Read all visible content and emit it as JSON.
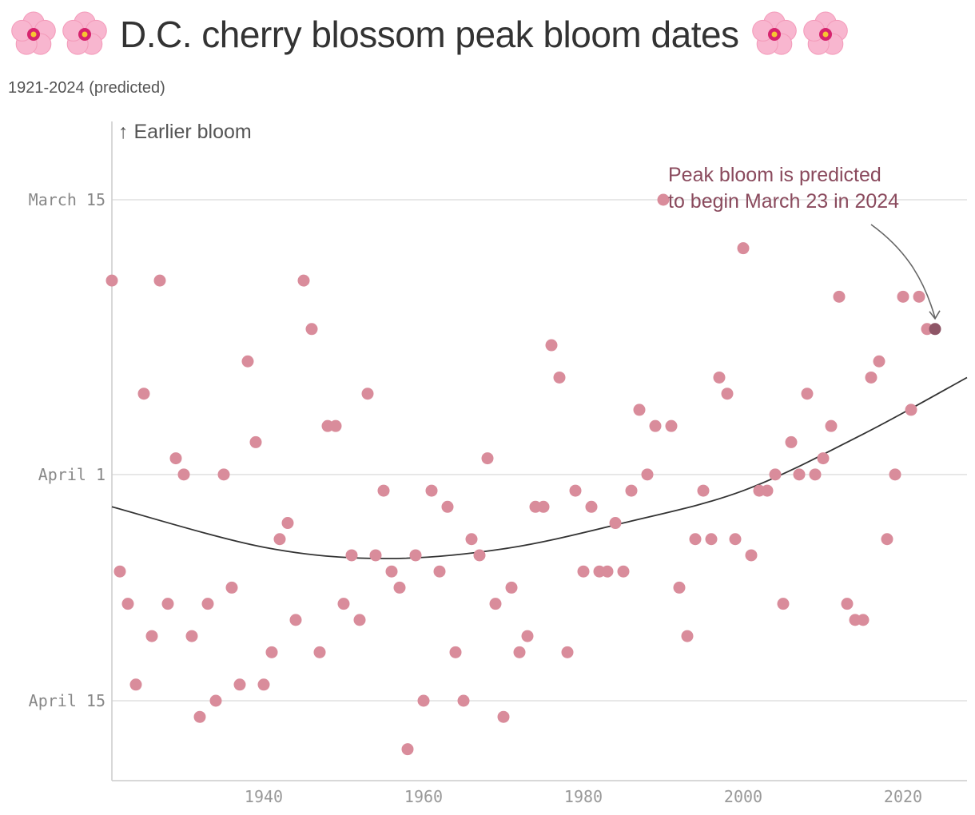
{
  "header": {
    "title": "D.C. cherry blossom peak bloom dates",
    "icon": "cherry-blossom-icon",
    "subtitle": "1921-2024 (predicted)"
  },
  "chart_data": {
    "type": "scatter",
    "title": "D.C. cherry blossom peak bloom dates",
    "subtitle": "1921-2024 (predicted)",
    "xlabel": "",
    "ylabel": "",
    "y_axis_note": "↑ Earlier bloom",
    "y_inverted": true,
    "xlim": [
      1921,
      2028
    ],
    "ylim": [
      "2024-03-10",
      "2024-04-20"
    ],
    "x_ticks": [
      1940,
      1960,
      1980,
      2000,
      2020
    ],
    "y_ticks": [
      {
        "value": "2024-03-15",
        "label": "March 15"
      },
      {
        "value": "2024-04-01",
        "label": "April 1"
      },
      {
        "value": "2024-04-15",
        "label": "April 15"
      }
    ],
    "grid": true,
    "colors": {
      "points": "#d98c9b",
      "predicted_point": "#8e5566",
      "trend_line": "#333333",
      "annotation": "#8a4a5d",
      "grid": "#e0e0e0"
    },
    "series": [
      {
        "points": [
          {
            "x": 1921,
            "y": "2024-03-20"
          },
          {
            "x": 1922,
            "y": "2024-04-07"
          },
          {
            "x": 1923,
            "y": "2024-04-09"
          },
          {
            "x": 1924,
            "y": "2024-04-14"
          },
          {
            "x": 1925,
            "y": "2024-03-27"
          },
          {
            "x": 1926,
            "y": "2024-04-11"
          },
          {
            "x": 1927,
            "y": "2024-03-20"
          },
          {
            "x": 1928,
            "y": "2024-04-09"
          },
          {
            "x": 1929,
            "y": "2024-03-31"
          },
          {
            "x": 1930,
            "y": "2024-04-01"
          },
          {
            "x": 1931,
            "y": "2024-04-11"
          },
          {
            "x": 1932,
            "y": "2024-04-16"
          },
          {
            "x": 1933,
            "y": "2024-04-09"
          },
          {
            "x": 1934,
            "y": "2024-04-15"
          },
          {
            "x": 1935,
            "y": "2024-04-01"
          },
          {
            "x": 1936,
            "y": "2024-04-08"
          },
          {
            "x": 1937,
            "y": "2024-04-14"
          },
          {
            "x": 1938,
            "y": "2024-03-25"
          },
          {
            "x": 1939,
            "y": "2024-03-30"
          },
          {
            "x": 1940,
            "y": "2024-04-14"
          },
          {
            "x": 1941,
            "y": "2024-04-12"
          },
          {
            "x": 1942,
            "y": "2024-04-05"
          },
          {
            "x": 1943,
            "y": "2024-04-04"
          },
          {
            "x": 1944,
            "y": "2024-04-10"
          },
          {
            "x": 1945,
            "y": "2024-03-20"
          },
          {
            "x": 1946,
            "y": "2024-03-23"
          },
          {
            "x": 1947,
            "y": "2024-04-12"
          },
          {
            "x": 1948,
            "y": "2024-03-29"
          },
          {
            "x": 1949,
            "y": "2024-03-29"
          },
          {
            "x": 1950,
            "y": "2024-04-09"
          },
          {
            "x": 1951,
            "y": "2024-04-06"
          },
          {
            "x": 1952,
            "y": "2024-04-10"
          },
          {
            "x": 1953,
            "y": "2024-03-27"
          },
          {
            "x": 1954,
            "y": "2024-04-06"
          },
          {
            "x": 1955,
            "y": "2024-04-02"
          },
          {
            "x": 1956,
            "y": "2024-04-07"
          },
          {
            "x": 1957,
            "y": "2024-04-08"
          },
          {
            "x": 1958,
            "y": "2024-04-18"
          },
          {
            "x": 1959,
            "y": "2024-04-06"
          },
          {
            "x": 1960,
            "y": "2024-04-15"
          },
          {
            "x": 1961,
            "y": "2024-04-02"
          },
          {
            "x": 1962,
            "y": "2024-04-07"
          },
          {
            "x": 1963,
            "y": "2024-04-03"
          },
          {
            "x": 1964,
            "y": "2024-04-12"
          },
          {
            "x": 1965,
            "y": "2024-04-15"
          },
          {
            "x": 1966,
            "y": "2024-04-05"
          },
          {
            "x": 1967,
            "y": "2024-04-06"
          },
          {
            "x": 1968,
            "y": "2024-03-31"
          },
          {
            "x": 1969,
            "y": "2024-04-09"
          },
          {
            "x": 1970,
            "y": "2024-04-16"
          },
          {
            "x": 1971,
            "y": "2024-04-08"
          },
          {
            "x": 1972,
            "y": "2024-04-12"
          },
          {
            "x": 1973,
            "y": "2024-04-11"
          },
          {
            "x": 1974,
            "y": "2024-04-03"
          },
          {
            "x": 1975,
            "y": "2024-04-03"
          },
          {
            "x": 1976,
            "y": "2024-03-24"
          },
          {
            "x": 1977,
            "y": "2024-03-26"
          },
          {
            "x": 1978,
            "y": "2024-04-12"
          },
          {
            "x": 1979,
            "y": "2024-04-02"
          },
          {
            "x": 1980,
            "y": "2024-04-07"
          },
          {
            "x": 1981,
            "y": "2024-04-03"
          },
          {
            "x": 1982,
            "y": "2024-04-07"
          },
          {
            "x": 1983,
            "y": "2024-04-07"
          },
          {
            "x": 1984,
            "y": "2024-04-04"
          },
          {
            "x": 1985,
            "y": "2024-04-07"
          },
          {
            "x": 1986,
            "y": "2024-04-02"
          },
          {
            "x": 1987,
            "y": "2024-03-28"
          },
          {
            "x": 1988,
            "y": "2024-04-01"
          },
          {
            "x": 1989,
            "y": "2024-03-29"
          },
          {
            "x": 1990,
            "y": "2024-03-15"
          },
          {
            "x": 1991,
            "y": "2024-03-29"
          },
          {
            "x": 1992,
            "y": "2024-04-08"
          },
          {
            "x": 1993,
            "y": "2024-04-11"
          },
          {
            "x": 1994,
            "y": "2024-04-05"
          },
          {
            "x": 1995,
            "y": "2024-04-02"
          },
          {
            "x": 1996,
            "y": "2024-04-05"
          },
          {
            "x": 1997,
            "y": "2024-03-26"
          },
          {
            "x": 1998,
            "y": "2024-03-27"
          },
          {
            "x": 1999,
            "y": "2024-04-05"
          },
          {
            "x": 2000,
            "y": "2024-03-18"
          },
          {
            "x": 2001,
            "y": "2024-04-06"
          },
          {
            "x": 2002,
            "y": "2024-04-02"
          },
          {
            "x": 2003,
            "y": "2024-04-02"
          },
          {
            "x": 2004,
            "y": "2024-04-01"
          },
          {
            "x": 2005,
            "y": "2024-04-09"
          },
          {
            "x": 2006,
            "y": "2024-03-30"
          },
          {
            "x": 2007,
            "y": "2024-04-01"
          },
          {
            "x": 2008,
            "y": "2024-03-27"
          },
          {
            "x": 2009,
            "y": "2024-04-01"
          },
          {
            "x": 2010,
            "y": "2024-03-31"
          },
          {
            "x": 2011,
            "y": "2024-03-29"
          },
          {
            "x": 2012,
            "y": "2024-03-21"
          },
          {
            "x": 2013,
            "y": "2024-04-09"
          },
          {
            "x": 2014,
            "y": "2024-04-10"
          },
          {
            "x": 2015,
            "y": "2024-04-10"
          },
          {
            "x": 2016,
            "y": "2024-03-26"
          },
          {
            "x": 2017,
            "y": "2024-03-25"
          },
          {
            "x": 2018,
            "y": "2024-04-05"
          },
          {
            "x": 2019,
            "y": "2024-04-01"
          },
          {
            "x": 2020,
            "y": "2024-03-21"
          },
          {
            "x": 2021,
            "y": "2024-03-28"
          },
          {
            "x": 2022,
            "y": "2024-03-21"
          },
          {
            "x": 2023,
            "y": "2024-03-23"
          }
        ]
      },
      {
        "type": "predicted",
        "points": [
          {
            "x": 2024,
            "y": "2024-03-23"
          }
        ]
      },
      {
        "type": "trend",
        "points": [
          {
            "x": 1921,
            "y": "2024-04-03"
          },
          {
            "x": 1940,
            "y": "2024-04-05.5"
          },
          {
            "x": 1955,
            "y": "2024-04-06.2"
          },
          {
            "x": 1970,
            "y": "2024-04-05.6"
          },
          {
            "x": 1985,
            "y": "2024-04-04"
          },
          {
            "x": 2000,
            "y": "2024-04-02"
          },
          {
            "x": 2015,
            "y": "2024-03-29.5"
          },
          {
            "x": 2028,
            "y": "2024-03-26"
          }
        ]
      }
    ],
    "annotation": {
      "lines": [
        "Peak bloom is predicted",
        "to begin March 23 in 2024"
      ],
      "target": {
        "x": 2024,
        "y": "2024-03-23"
      }
    }
  }
}
